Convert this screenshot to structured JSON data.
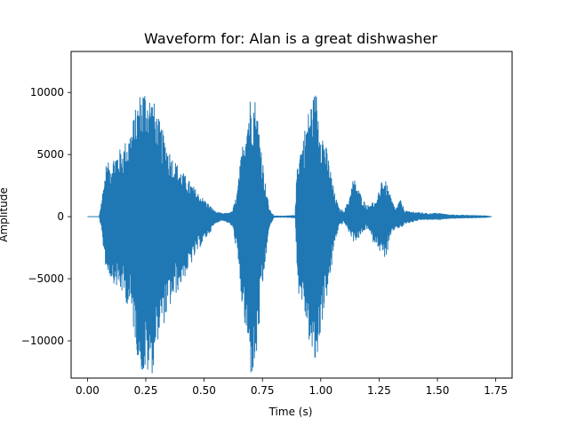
{
  "chart_data": {
    "type": "line",
    "title": "Waveform for: Alan is a great dishwasher",
    "xlabel": "Time (s)",
    "ylabel": "Amplitude",
    "xlim": [
      -0.07,
      1.82
    ],
    "ylim": [
      -13000,
      13300
    ],
    "xticks": [
      0.0,
      0.25,
      0.5,
      0.75,
      1.0,
      1.25,
      1.5,
      1.75
    ],
    "xtick_labels": [
      "0.00",
      "0.25",
      "0.50",
      "0.75",
      "1.00",
      "1.25",
      "1.50",
      "1.75"
    ],
    "yticks": [
      -10000,
      -5000,
      0,
      5000,
      10000
    ],
    "ytick_labels": [
      "−10000",
      "−5000",
      "0",
      "5000",
      "10000"
    ],
    "grid": false,
    "color": "#1f77b4",
    "series": [
      {
        "x": [
          0.0,
          0.05,
          0.06,
          0.08,
          0.1,
          0.12,
          0.15,
          0.18,
          0.2,
          0.22,
          0.24,
          0.26,
          0.28,
          0.3,
          0.33,
          0.36,
          0.4,
          0.44,
          0.48,
          0.52,
          0.55,
          0.58,
          0.6,
          0.62,
          0.64,
          0.66,
          0.68,
          0.7,
          0.72,
          0.74,
          0.76,
          0.78,
          0.8,
          0.85,
          0.89,
          0.9,
          0.92,
          0.94,
          0.96,
          0.98,
          1.0,
          1.02,
          1.04,
          1.06,
          1.08,
          1.1,
          1.12,
          1.14,
          1.16,
          1.18,
          1.2,
          1.22,
          1.24,
          1.26,
          1.28,
          1.3,
          1.32,
          1.34,
          1.36,
          1.38,
          1.4,
          1.42,
          1.44,
          1.46,
          1.5,
          1.55,
          1.6,
          1.65,
          1.7,
          1.73
        ],
        "max": [
          0,
          0,
          1300,
          4200,
          4500,
          5200,
          5600,
          6800,
          8200,
          9800,
          10600,
          10200,
          9600,
          8200,
          6500,
          5000,
          3800,
          2800,
          1800,
          1000,
          400,
          250,
          300,
          400,
          1800,
          5200,
          8000,
          10000,
          9600,
          6800,
          3000,
          600,
          50,
          50,
          100,
          5000,
          6000,
          8000,
          9500,
          10200,
          7500,
          6000,
          4000,
          1800,
          600,
          500,
          1400,
          3200,
          2300,
          1400,
          900,
          1200,
          1100,
          3200,
          2800,
          1600,
          600,
          1400,
          500,
          400,
          400,
          350,
          300,
          250,
          300,
          150,
          120,
          100,
          80,
          0
        ],
        "min": [
          0,
          0,
          -1400,
          -4500,
          -5000,
          -5600,
          -6300,
          -7500,
          -9500,
          -12000,
          -13000,
          -12800,
          -12600,
          -10000,
          -8500,
          -7000,
          -5500,
          -4000,
          -2500,
          -1400,
          -500,
          -300,
          -500,
          -800,
          -3000,
          -7000,
          -10000,
          -13000,
          -12500,
          -8000,
          -4000,
          -800,
          -50,
          -50,
          -100,
          -6000,
          -7000,
          -9000,
          -11500,
          -12500,
          -9000,
          -7000,
          -5000,
          -2000,
          -700,
          -500,
          -1300,
          -2000,
          -1800,
          -1300,
          -900,
          -2000,
          -2200,
          -3200,
          -3300,
          -1600,
          -900,
          -1000,
          -600,
          -500,
          -400,
          -300,
          -250,
          -250,
          -250,
          -150,
          -120,
          -100,
          -80,
          0
        ]
      }
    ]
  }
}
